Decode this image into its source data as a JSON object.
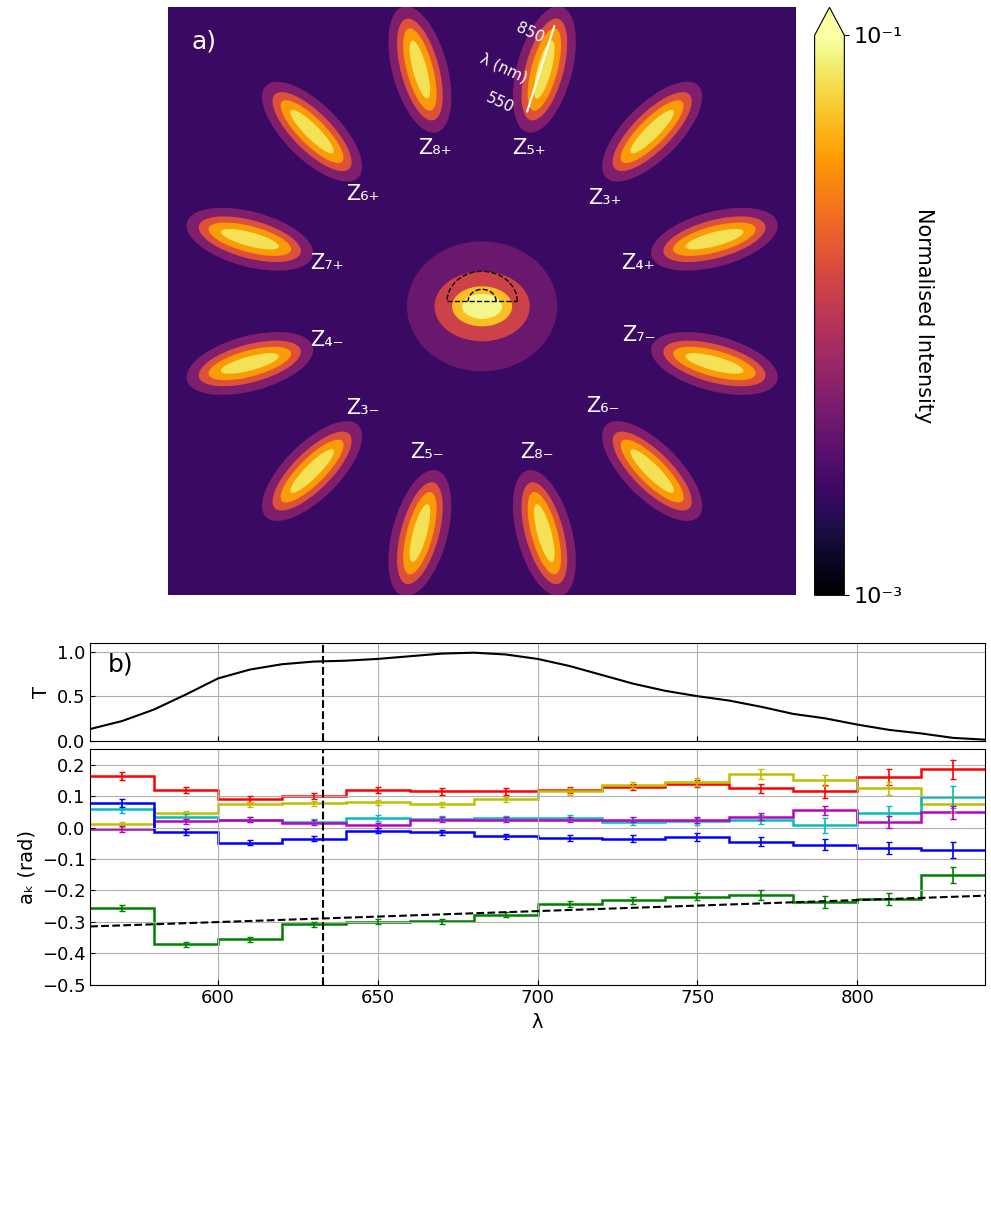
{
  "chart_data": [
    {
      "type": "image",
      "title": "a)",
      "labels": [
        "Z₄₊",
        "Z₃₊",
        "Z₅₊",
        "Z₈₊",
        "Z₆₊",
        "Z₇₊",
        "Z₄₋",
        "Z₃₋",
        "Z₅₋",
        "Z₈₋",
        "Z₆₋",
        "Z₇₋"
      ],
      "wavelength_bar": {
        "top": "850",
        "middle": "λ (nm)",
        "bottom": "550"
      },
      "colorbar": {
        "label": "Normalised Intensity",
        "range": [
          0.001,
          0.1
        ],
        "ticks": [
          {
            "value": 0.001,
            "label": "10⁻³"
          },
          {
            "value": 0.1,
            "label": "10⁻¹"
          }
        ]
      }
    },
    {
      "type": "line",
      "title": "b)",
      "y_label": "T",
      "x": [
        560,
        570,
        580,
        590,
        600,
        610,
        620,
        630,
        640,
        650,
        660,
        670,
        680,
        690,
        700,
        710,
        720,
        730,
        740,
        750,
        760,
        770,
        780,
        790,
        800,
        810,
        820,
        830,
        840
      ],
      "values": [
        0.13,
        0.22,
        0.35,
        0.52,
        0.7,
        0.8,
        0.86,
        0.89,
        0.9,
        0.92,
        0.95,
        0.98,
        0.99,
        0.97,
        0.92,
        0.84,
        0.74,
        0.64,
        0.56,
        0.5,
        0.45,
        0.38,
        0.3,
        0.25,
        0.18,
        0.12,
        0.08,
        0.03,
        0.01
      ],
      "color": "#000000",
      "reference_line_x": 632.8,
      "xlim": [
        560,
        840
      ],
      "xticks": [
        600,
        650,
        700,
        750,
        800
      ],
      "ylim": [
        0,
        1.1
      ],
      "yticks": [
        {
          "value": 0,
          "label": "0.0"
        },
        0.5,
        {
          "value": 1,
          "label": "1.0"
        }
      ],
      "grid": true,
      "tick_labels": "y"
    },
    {
      "type": "step",
      "x_label": "λ",
      "y_label": "aₖ (rad)",
      "bins": [
        560,
        580,
        600,
        620,
        640,
        660,
        680,
        700,
        720,
        740,
        760,
        780,
        800,
        820,
        840
      ],
      "x": [
        570,
        590,
        610,
        630,
        650,
        670,
        690,
        710,
        730,
        750,
        770,
        790,
        810,
        830
      ],
      "series": [
        {
          "color": "#ff0000",
          "values": [
            0.165,
            0.12,
            0.09,
            0.1,
            0.12,
            0.115,
            0.115,
            0.12,
            0.13,
            0.14,
            0.125,
            0.115,
            0.16,
            0.185
          ],
          "errors": [
            0.013,
            0.01,
            0.01,
            0.01,
            0.01,
            0.01,
            0.01,
            0.01,
            0.01,
            0.012,
            0.015,
            0.02,
            0.025,
            0.03
          ]
        },
        {
          "color": "#bfbf00",
          "values": [
            0.01,
            0.045,
            0.075,
            0.078,
            0.08,
            0.075,
            0.09,
            0.115,
            0.135,
            0.145,
            0.17,
            0.15,
            0.125,
            0.075
          ],
          "errors": [
            0.008,
            0.008,
            0.008,
            0.008,
            0.008,
            0.008,
            0.008,
            0.01,
            0.01,
            0.012,
            0.015,
            0.018,
            0.02,
            0.025
          ]
        },
        {
          "color": "#00bfbf",
          "values": [
            0.06,
            0.035,
            0.025,
            0.018,
            0.03,
            0.028,
            0.03,
            0.03,
            0.018,
            0.02,
            0.025,
            0.007,
            0.045,
            0.097
          ],
          "errors": [
            0.015,
            0.008,
            0.008,
            0.008,
            0.01,
            0.008,
            0.008,
            0.01,
            0.01,
            0.012,
            0.015,
            0.025,
            0.025,
            0.035
          ]
        },
        {
          "color": "#bf00bf",
          "values": [
            -0.005,
            0.02,
            0.025,
            0.015,
            0.007,
            0.025,
            0.025,
            0.025,
            0.025,
            0.025,
            0.035,
            0.055,
            0.018,
            0.048
          ],
          "errors": [
            0.01,
            0.008,
            0.008,
            0.008,
            0.008,
            0.008,
            0.008,
            0.008,
            0.008,
            0.01,
            0.012,
            0.015,
            0.02,
            0.02
          ]
        },
        {
          "color": "#0000ff",
          "values": [
            0.078,
            -0.015,
            -0.048,
            -0.035,
            -0.01,
            -0.015,
            -0.028,
            -0.033,
            -0.035,
            -0.03,
            -0.045,
            -0.055,
            -0.065,
            -0.072
          ],
          "errors": [
            0.013,
            0.01,
            0.008,
            0.008,
            0.008,
            0.008,
            0.008,
            0.01,
            0.01,
            0.012,
            0.015,
            0.018,
            0.02,
            0.025
          ]
        },
        {
          "color": "#008000",
          "values": [
            -0.257,
            -0.372,
            -0.355,
            -0.308,
            -0.3,
            -0.298,
            -0.277,
            -0.243,
            -0.232,
            -0.22,
            -0.215,
            -0.237,
            -0.227,
            -0.15
          ],
          "errors": [
            0.01,
            0.008,
            0.008,
            0.008,
            0.008,
            0.008,
            0.008,
            0.01,
            0.01,
            0.012,
            0.015,
            0.018,
            0.02,
            0.025
          ]
        }
      ],
      "fit_line": {
        "x": [
          560,
          840
        ],
        "values": [
          -0.315,
          -0.217
        ],
        "color": "#000000",
        "line_style": "dashed"
      },
      "reference_line_x": 632.8,
      "xlim": [
        560,
        840
      ],
      "xticks": [
        600,
        650,
        700,
        750,
        800
      ],
      "ylim": [
        -0.5,
        0.25
      ],
      "yticks": [
        {
          "value": -0.5,
          "label": "−0.5"
        },
        {
          "value": -0.4,
          "label": "−0.4"
        },
        {
          "value": -0.3,
          "label": "−0.3"
        },
        {
          "value": -0.2,
          "label": "−0.2"
        },
        {
          "value": -0.1,
          "label": "−0.1"
        },
        {
          "value": 0,
          "label": "0.0"
        },
        0.1,
        0.2
      ],
      "grid": true
    }
  ]
}
